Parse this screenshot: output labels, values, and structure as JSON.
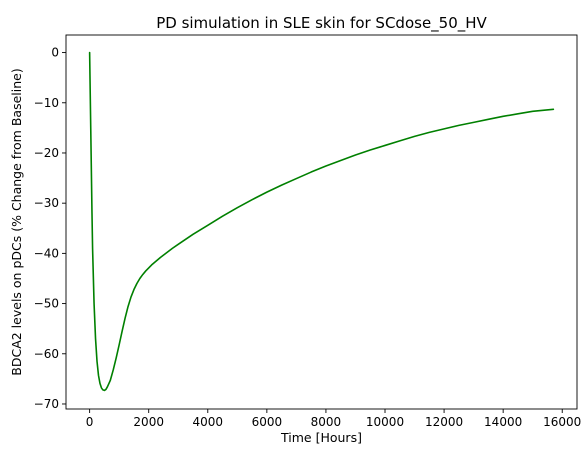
{
  "chart_data": {
    "type": "line",
    "title": "PD simulation in SLE skin for SCdose_50_HV",
    "xlabel": "Time [Hours]",
    "ylabel": "BDCA2 levels on pDCs (% Change from Baseline)",
    "xlim": [
      -800,
      16500
    ],
    "ylim": [
      -71,
      3.5
    ],
    "xticks": [
      0,
      2000,
      4000,
      6000,
      8000,
      10000,
      12000,
      14000,
      16000
    ],
    "yticks": [
      0,
      -10,
      -20,
      -30,
      -40,
      -50,
      -60,
      -70
    ],
    "grid": false,
    "series": [
      {
        "color": "#008000",
        "x": [
          0,
          20,
          50,
          80,
          100,
          150,
          200,
          250,
          300,
          350,
          400,
          450,
          500,
          550,
          600,
          700,
          800,
          900,
          1000,
          1100,
          1200,
          1300,
          1400,
          1500,
          1600,
          1700,
          1800,
          1900,
          2000,
          2100,
          2200,
          2400,
          2600,
          2800,
          3000,
          3500,
          4000,
          4500,
          5000,
          5500,
          6000,
          6500,
          7000,
          7500,
          8000,
          8500,
          9000,
          9500,
          10000,
          10500,
          11000,
          11500,
          12000,
          12500,
          13000,
          13500,
          14000,
          14500,
          15000,
          15700
        ],
        "y": [
          0,
          -8,
          -20,
          -32,
          -39,
          -50,
          -57,
          -61.5,
          -64.3,
          -65.9,
          -66.8,
          -67.2,
          -67.3,
          -67.1,
          -66.6,
          -65.3,
          -63.2,
          -60.8,
          -58.2,
          -55.5,
          -52.9,
          -50.6,
          -48.7,
          -47.2,
          -46.0,
          -45.0,
          -44.2,
          -43.5,
          -42.9,
          -42.3,
          -41.8,
          -40.8,
          -39.9,
          -39.0,
          -38.2,
          -36.2,
          -34.4,
          -32.6,
          -30.9,
          -29.3,
          -27.8,
          -26.4,
          -25.1,
          -23.8,
          -22.6,
          -21.5,
          -20.4,
          -19.4,
          -18.5,
          -17.6,
          -16.7,
          -15.9,
          -15.2,
          -14.5,
          -13.9,
          -13.3,
          -12.7,
          -12.2,
          -11.7,
          -11.3
        ]
      }
    ]
  }
}
